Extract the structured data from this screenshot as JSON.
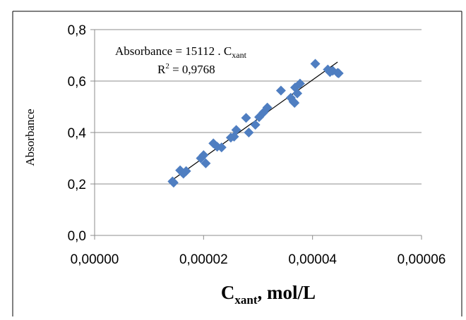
{
  "chart_data": {
    "type": "scatter",
    "title": "",
    "xlabel": {
      "main": "C",
      "sub": "xant",
      "unit": ", mol/L"
    },
    "ylabel": "Absorbance",
    "xlim": [
      0,
      6e-05
    ],
    "ylim": [
      0,
      0.8
    ],
    "x_ticks": [
      {
        "value": 0,
        "label": "0,00000"
      },
      {
        "value": 2e-05,
        "label": "0,00002"
      },
      {
        "value": 4e-05,
        "label": "0,00004"
      },
      {
        "value": 6e-05,
        "label": "0,00006"
      }
    ],
    "y_ticks": [
      {
        "value": 0,
        "label": "0,0"
      },
      {
        "value": 0.2,
        "label": "0,2"
      },
      {
        "value": 0.4,
        "label": "0,4"
      },
      {
        "value": 0.6,
        "label": "0,6"
      },
      {
        "value": 0.8,
        "label": "0,8"
      }
    ],
    "grid": "horizontal",
    "marker": "diamond",
    "marker_color": "#4f7ec1",
    "trendline_color": "#000000",
    "trendline": {
      "slope": 15112,
      "intercept": 0,
      "x_range": [
        1.42e-05,
        4.46e-05
      ]
    },
    "annotation": {
      "equation_prefix": "Absorbance = 15112 . C",
      "equation_sub": "xant",
      "r2_prefix": "R",
      "r2_sup": "2",
      "r2_value": " = 0,9768"
    },
    "points": [
      {
        "x": 1.43e-05,
        "y": 0.21
      },
      {
        "x": 1.45e-05,
        "y": 0.205
      },
      {
        "x": 1.57e-05,
        "y": 0.253
      },
      {
        "x": 1.63e-05,
        "y": 0.24
      },
      {
        "x": 1.68e-05,
        "y": 0.25
      },
      {
        "x": 1.95e-05,
        "y": 0.3
      },
      {
        "x": 2e-05,
        "y": 0.312
      },
      {
        "x": 2.04e-05,
        "y": 0.28
      },
      {
        "x": 2.18e-05,
        "y": 0.358
      },
      {
        "x": 2.25e-05,
        "y": 0.345
      },
      {
        "x": 2.33e-05,
        "y": 0.342
      },
      {
        "x": 2.5e-05,
        "y": 0.38
      },
      {
        "x": 2.56e-05,
        "y": 0.384
      },
      {
        "x": 2.6e-05,
        "y": 0.41
      },
      {
        "x": 2.78e-05,
        "y": 0.457
      },
      {
        "x": 2.83e-05,
        "y": 0.4
      },
      {
        "x": 2.95e-05,
        "y": 0.43
      },
      {
        "x": 3.02e-05,
        "y": 0.46
      },
      {
        "x": 3.1e-05,
        "y": 0.478
      },
      {
        "x": 3.17e-05,
        "y": 0.497
      },
      {
        "x": 3.42e-05,
        "y": 0.563
      },
      {
        "x": 3.6e-05,
        "y": 0.535
      },
      {
        "x": 3.65e-05,
        "y": 0.52
      },
      {
        "x": 3.67e-05,
        "y": 0.515
      },
      {
        "x": 3.68e-05,
        "y": 0.575
      },
      {
        "x": 3.72e-05,
        "y": 0.552
      },
      {
        "x": 3.77e-05,
        "y": 0.59
      },
      {
        "x": 4.05e-05,
        "y": 0.667
      },
      {
        "x": 4.28e-05,
        "y": 0.645
      },
      {
        "x": 4.32e-05,
        "y": 0.635
      },
      {
        "x": 4.37e-05,
        "y": 0.64
      },
      {
        "x": 4.46e-05,
        "y": 0.632
      },
      {
        "x": 4.48e-05,
        "y": 0.63
      }
    ]
  }
}
